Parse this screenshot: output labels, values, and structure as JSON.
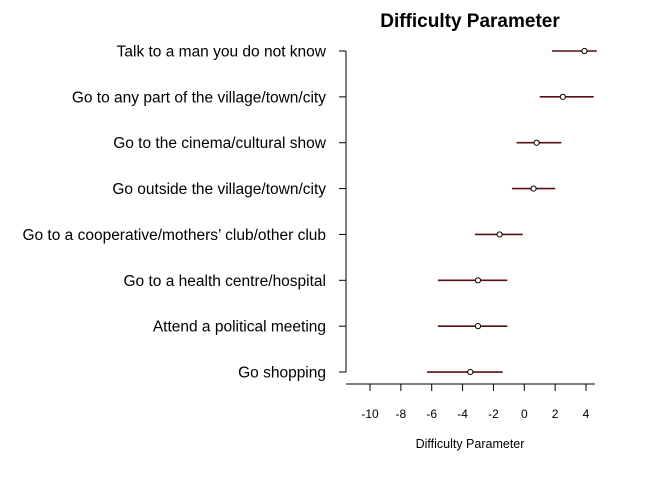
{
  "chart_data": {
    "type": "forest",
    "title": "Difficulty Parameter",
    "xlabel": "Difficulty Parameter",
    "ylabel": "",
    "xlim": [
      -11.5,
      4.8
    ],
    "xticks": [
      -10,
      -8,
      -6,
      -4,
      -2,
      0,
      2,
      4
    ],
    "xtick_labels": [
      "-10",
      "-8",
      "-6",
      "-4",
      "-2",
      "0",
      "2",
      "4"
    ],
    "grid": false,
    "color": "#5a0f14",
    "items": [
      {
        "label": "Talk to a man you do not know",
        "estimate": 3.9,
        "lower": 1.8,
        "upper": 4.7
      },
      {
        "label": "Go to any part of the village/town/city",
        "estimate": 2.5,
        "lower": 1.0,
        "upper": 4.5
      },
      {
        "label": "Go to the cinema/cultural show",
        "estimate": 0.8,
        "lower": -0.5,
        "upper": 2.4
      },
      {
        "label": "Go outside the village/town/city",
        "estimate": 0.6,
        "lower": -0.8,
        "upper": 2.0
      },
      {
        "label": "Go to a cooperative/mothers’ club/other club",
        "estimate": -1.6,
        "lower": -3.2,
        "upper": -0.1
      },
      {
        "label": "Go to a health centre/hospital",
        "estimate": -3.0,
        "lower": -5.6,
        "upper": -1.1
      },
      {
        "label": "Attend a political meeting",
        "estimate": -3.0,
        "lower": -5.6,
        "upper": -1.1
      },
      {
        "label": "Go shopping",
        "estimate": -3.5,
        "lower": -6.3,
        "upper": -1.4
      }
    ]
  }
}
